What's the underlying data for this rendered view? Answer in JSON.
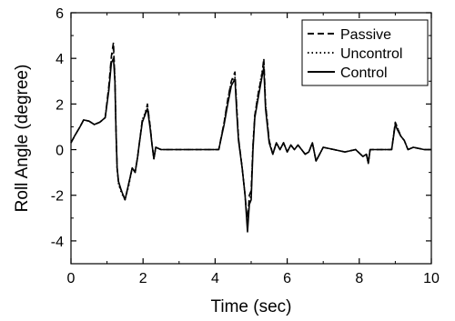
{
  "chart_data": {
    "type": "line",
    "title": "",
    "xlabel": "Time (sec)",
    "ylabel": "Roll Angle (degree)",
    "xlim": [
      0,
      10
    ],
    "ylim": [
      -5,
      6
    ],
    "xticks": [
      "0",
      "2",
      "4",
      "6",
      "8",
      "10"
    ],
    "yticks": [
      "-4",
      "-2",
      "0",
      "2",
      "4",
      "6"
    ],
    "grid": false,
    "legend_position": "top-right",
    "series": [
      {
        "name": "Passive",
        "style": "dashed",
        "x": [
          0,
          0.1,
          0.25,
          0.35,
          0.5,
          0.65,
          0.8,
          0.95,
          1.05,
          1.12,
          1.18,
          1.22,
          1.25,
          1.28,
          1.32,
          1.4,
          1.5,
          1.6,
          1.7,
          1.78,
          1.85,
          1.9,
          1.98,
          2.05,
          2.12,
          2.2,
          2.25,
          2.3,
          2.35,
          2.5,
          2.8,
          3.2,
          3.6,
          4.1,
          4.25,
          4.35,
          4.45,
          4.55,
          4.6,
          4.65,
          4.75,
          4.83,
          4.9,
          4.95,
          5.0,
          5.05,
          5.1,
          5.2,
          5.3,
          5.35,
          5.4,
          5.5,
          5.6,
          5.7,
          5.8,
          5.9,
          6.0,
          6.1,
          6.2,
          6.3,
          6.5,
          6.6,
          6.7,
          6.8,
          7.0,
          7.3,
          7.6,
          7.9,
          8.1,
          8.2,
          8.25,
          8.3,
          8.6,
          8.9,
          9.0,
          9.05,
          9.15,
          9.25,
          9.35,
          9.5,
          9.8,
          10.0
        ],
        "values": [
          0.3,
          0.6,
          1.0,
          1.3,
          1.25,
          1.1,
          1.2,
          1.4,
          2.8,
          4.1,
          4.7,
          3.0,
          0.8,
          -0.8,
          -1.5,
          -1.8,
          -2.2,
          -1.5,
          -0.8,
          -1.0,
          -0.3,
          0.3,
          1.3,
          1.5,
          2.0,
          1.0,
          0.2,
          -0.4,
          0.1,
          0.0,
          0.0,
          0.0,
          0.0,
          0.0,
          1.2,
          2.2,
          3.0,
          3.4,
          1.8,
          0.5,
          -0.8,
          -2.0,
          -3.2,
          -2.0,
          -1.8,
          0.2,
          1.5,
          2.5,
          3.3,
          4.0,
          2.0,
          0.4,
          -0.2,
          0.3,
          0.0,
          0.3,
          -0.1,
          0.2,
          0.0,
          0.2,
          -0.2,
          -0.1,
          0.3,
          -0.5,
          0.1,
          0.0,
          -0.1,
          0.0,
          -0.3,
          -0.2,
          -0.6,
          0.0,
          0.0,
          0.0,
          1.2,
          1.0,
          0.6,
          0.4,
          0.0,
          0.1,
          0.0,
          0.0
        ]
      },
      {
        "name": "Uncontrol",
        "style": "dotted",
        "x": [
          0,
          0.1,
          0.25,
          0.35,
          0.5,
          0.65,
          0.8,
          0.95,
          1.05,
          1.12,
          1.18,
          1.22,
          1.25,
          1.28,
          1.32,
          1.4,
          1.5,
          1.6,
          1.7,
          1.78,
          1.85,
          1.9,
          1.98,
          2.05,
          2.12,
          2.2,
          2.25,
          2.3,
          2.35,
          2.5,
          2.8,
          3.2,
          3.6,
          4.1,
          4.25,
          4.35,
          4.45,
          4.55,
          4.6,
          4.65,
          4.75,
          4.83,
          4.9,
          4.95,
          5.0,
          5.05,
          5.1,
          5.2,
          5.3,
          5.35,
          5.4,
          5.5,
          5.6,
          5.7,
          5.8,
          5.9,
          6.0,
          6.1,
          6.2,
          6.3,
          6.5,
          6.6,
          6.7,
          6.8,
          7.0,
          7.3,
          7.6,
          7.9,
          8.1,
          8.2,
          8.25,
          8.3,
          8.6,
          8.9,
          9.0,
          9.05,
          9.15,
          9.25,
          9.35,
          9.5,
          9.8,
          10.0
        ],
        "values": [
          0.3,
          0.6,
          1.0,
          1.3,
          1.25,
          1.1,
          1.2,
          1.4,
          2.7,
          4.0,
          4.4,
          3.2,
          0.8,
          -0.8,
          -1.5,
          -1.9,
          -2.2,
          -1.6,
          -0.8,
          -1.0,
          -0.3,
          0.3,
          1.3,
          1.6,
          1.9,
          1.0,
          0.2,
          -0.4,
          0.1,
          0.0,
          0.0,
          0.0,
          0.0,
          0.0,
          1.2,
          2.2,
          3.0,
          3.2,
          1.8,
          0.5,
          -0.8,
          -2.0,
          -3.3,
          -2.2,
          -2.0,
          0.2,
          1.5,
          2.5,
          3.4,
          3.8,
          2.0,
          0.4,
          -0.2,
          0.3,
          0.0,
          0.3,
          -0.1,
          0.2,
          0.0,
          0.2,
          -0.2,
          -0.1,
          0.3,
          -0.5,
          0.1,
          0.0,
          -0.1,
          0.0,
          -0.3,
          -0.2,
          -0.6,
          0.0,
          0.0,
          0.0,
          1.2,
          1.0,
          0.6,
          0.4,
          0.0,
          0.1,
          0.0,
          0.0
        ]
      },
      {
        "name": "Control",
        "style": "solid",
        "x": [
          0,
          0.1,
          0.25,
          0.35,
          0.5,
          0.65,
          0.8,
          0.95,
          1.05,
          1.12,
          1.18,
          1.22,
          1.25,
          1.28,
          1.32,
          1.4,
          1.5,
          1.6,
          1.7,
          1.78,
          1.85,
          1.9,
          1.98,
          2.05,
          2.12,
          2.2,
          2.25,
          2.3,
          2.35,
          2.5,
          2.8,
          3.2,
          3.6,
          4.1,
          4.25,
          4.35,
          4.45,
          4.55,
          4.6,
          4.65,
          4.75,
          4.83,
          4.9,
          4.95,
          5.0,
          5.05,
          5.1,
          5.2,
          5.3,
          5.35,
          5.4,
          5.5,
          5.6,
          5.7,
          5.8,
          5.9,
          6.0,
          6.1,
          6.2,
          6.3,
          6.5,
          6.6,
          6.7,
          6.8,
          7.0,
          7.3,
          7.6,
          7.9,
          8.1,
          8.2,
          8.25,
          8.3,
          8.6,
          8.9,
          9.0,
          9.05,
          9.15,
          9.25,
          9.35,
          9.5,
          9.8,
          10.0
        ],
        "values": [
          0.3,
          0.6,
          1.0,
          1.3,
          1.25,
          1.1,
          1.2,
          1.4,
          2.6,
          3.8,
          4.0,
          3.0,
          0.8,
          -0.8,
          -1.4,
          -1.8,
          -2.2,
          -1.5,
          -0.8,
          -1.0,
          -0.3,
          0.3,
          1.2,
          1.5,
          1.8,
          0.9,
          0.2,
          -0.4,
          0.1,
          0.0,
          0.0,
          0.0,
          0.0,
          0.0,
          1.1,
          2.0,
          2.8,
          3.1,
          1.6,
          0.4,
          -0.8,
          -2.0,
          -3.6,
          -2.4,
          -2.2,
          0.0,
          1.4,
          2.3,
          3.2,
          3.6,
          1.8,
          0.3,
          -0.2,
          0.3,
          0.0,
          0.3,
          -0.1,
          0.2,
          0.0,
          0.2,
          -0.2,
          -0.1,
          0.3,
          -0.5,
          0.1,
          0.0,
          -0.1,
          0.0,
          -0.3,
          -0.2,
          -0.6,
          0.0,
          0.0,
          0.0,
          1.1,
          0.9,
          0.6,
          0.4,
          0.0,
          0.1,
          0.0,
          0.0
        ]
      }
    ]
  }
}
